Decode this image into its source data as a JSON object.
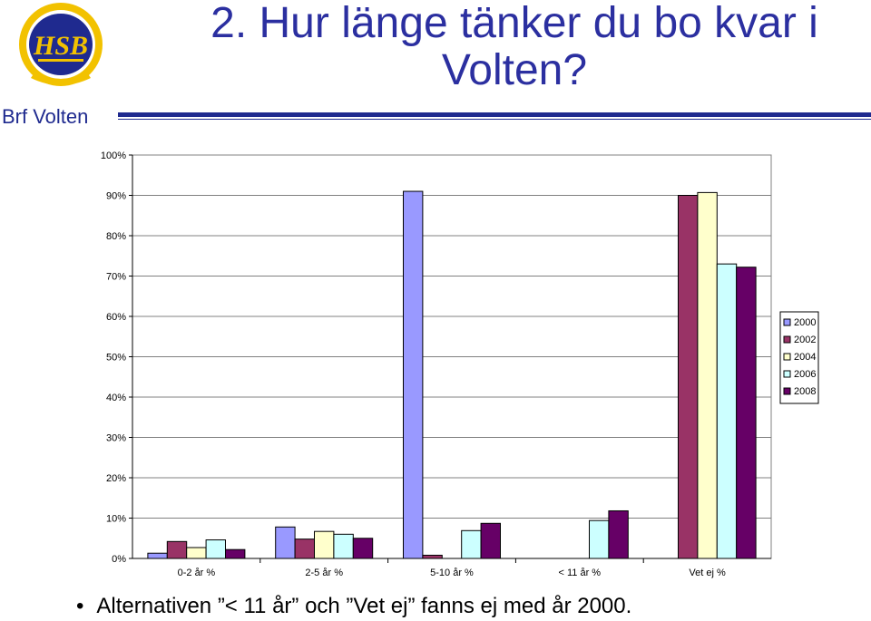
{
  "header": {
    "org_name": "Brf Volten",
    "title": "2. Hur länge tänker du bo kvar i Volten?",
    "logo_text": "HSB",
    "brand_color": "#1f2a8f",
    "logo_color": "#f2c200"
  },
  "chart_data": {
    "type": "bar",
    "categories": [
      "0-2 år %",
      "2-5 år %",
      "5-10 år %",
      "< 11 år %",
      "Vet ej %"
    ],
    "ylim": [
      0,
      100
    ],
    "yticks": [
      "0%",
      "10%",
      "20%",
      "30%",
      "40%",
      "50%",
      "60%",
      "70%",
      "80%",
      "90%",
      "100%"
    ],
    "grid": true,
    "legend_position": "right",
    "series": [
      {
        "name": "2000",
        "color": "#9999ff",
        "values": [
          1.3,
          7.8,
          91,
          null,
          null
        ]
      },
      {
        "name": "2002",
        "color": "#993366",
        "values": [
          4.2,
          4.8,
          0.8,
          null,
          90
        ]
      },
      {
        "name": "2004",
        "color": "#ffffcc",
        "values": [
          2.7,
          6.7,
          null,
          null,
          90.7
        ]
      },
      {
        "name": "2006",
        "color": "#ccffff",
        "values": [
          4.6,
          6.0,
          6.9,
          9.4,
          73
        ]
      },
      {
        "name": "2008",
        "color": "#660066",
        "values": [
          2.2,
          5.0,
          8.7,
          11.8,
          72.2
        ]
      }
    ]
  },
  "footnote": {
    "bullet": "•",
    "text": "Alternativen ”< 11 år” och ”Vet ej” fanns ej med år 2000."
  }
}
